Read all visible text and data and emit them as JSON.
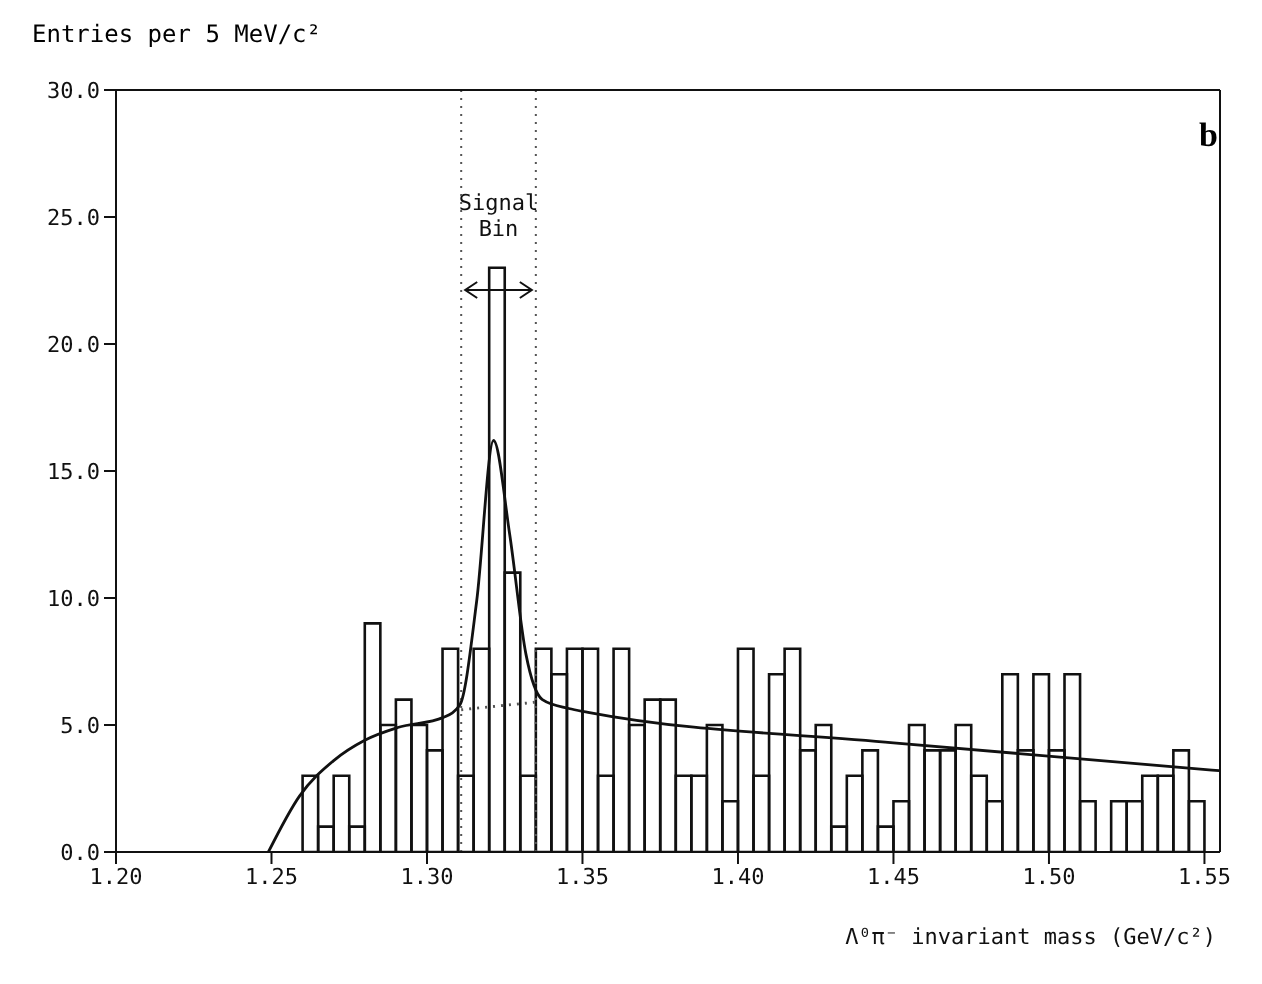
{
  "chart_data": {
    "type": "histogram",
    "xlabel": "Λ⁰π⁻ invariant mass (GeV/c²)",
    "ylabel": "Entries per 5 MeV/c²",
    "color": "#111111",
    "bins": [
      1.26,
      1.265,
      1.27,
      1.275,
      1.28,
      1.285,
      1.29,
      1.295,
      1.3,
      1.305,
      1.31,
      1.315,
      1.32,
      1.325,
      1.33,
      1.335,
      1.34,
      1.345,
      1.35,
      1.355,
      1.36,
      1.365,
      1.37,
      1.375,
      1.38,
      1.385,
      1.39,
      1.395,
      1.4,
      1.405,
      1.41,
      1.415,
      1.42,
      1.425,
      1.43,
      1.435,
      1.44,
      1.445,
      1.45,
      1.455,
      1.46,
      1.465,
      1.47,
      1.475,
      1.48,
      1.485,
      1.49,
      1.495,
      1.5,
      1.505,
      1.51,
      1.515,
      1.52,
      1.525,
      1.53,
      1.535,
      1.54,
      1.545,
      1.55
    ],
    "values": [
      3,
      1,
      3,
      1,
      9,
      5,
      6,
      5,
      4,
      8,
      3,
      8,
      23,
      11,
      3,
      8,
      7,
      8,
      8,
      3,
      8,
      5,
      6,
      6,
      3,
      3,
      5,
      2,
      8,
      3,
      7,
      8,
      4,
      5,
      1,
      3,
      4,
      1,
      2,
      5,
      4,
      4,
      5,
      3,
      2,
      7,
      4,
      7,
      4,
      7,
      2,
      0,
      2,
      2,
      3,
      3,
      4,
      2
    ],
    "series": [
      {
        "type": "line",
        "color": "#111111",
        "line_style": "solid",
        "x": [
          1.249,
          1.259,
          1.27,
          1.28,
          1.2906,
          1.3053,
          1.3106,
          1.316,
          1.3214,
          1.3266,
          1.3318,
          1.3371,
          1.3456,
          1.3518,
          1.45,
          1.5547
        ],
        "values": [
          0,
          2.2,
          3.6,
          4.4,
          4.9,
          5.3,
          5.8,
          9.9,
          16.2,
          12.5,
          7.8,
          6.0,
          5.65,
          5.5,
          4.3,
          3.2
        ]
      },
      {
        "type": "line",
        "color": "#555555",
        "line_style": "dotted",
        "x": [
          1.311,
          1.335
        ],
        "values": [
          5.6,
          5.9
        ]
      }
    ],
    "ref_lines": [
      {
        "axis": "x",
        "value": 1.311,
        "line_style": "dotted",
        "color": "#555555"
      },
      {
        "axis": "x",
        "value": 1.335,
        "line_style": "dotted",
        "color": "#555555"
      }
    ],
    "annotations": [
      "Signal Bin",
      "b"
    ],
    "xlim": [
      1.2,
      1.555
    ],
    "ylim": [
      0,
      30
    ],
    "xticks": [
      {
        "value": 1.2,
        "label": "1.20"
      },
      {
        "value": 1.25,
        "label": "1.25"
      },
      {
        "value": 1.3,
        "label": "1.30"
      },
      {
        "value": 1.35,
        "label": "1.35"
      },
      {
        "value": 1.4,
        "label": "1.40"
      },
      {
        "value": 1.45,
        "label": "1.45"
      },
      {
        "value": 1.5,
        "label": "1.50"
      },
      {
        "value": 1.55,
        "label": "1.55"
      }
    ],
    "yticks": [
      {
        "value": 0,
        "label": "0.0"
      },
      {
        "value": 5,
        "label": "5.0"
      },
      {
        "value": 10,
        "label": "10.0"
      },
      {
        "value": 15,
        "label": "15.0"
      },
      {
        "value": 20,
        "label": "20.0"
      },
      {
        "value": 25,
        "label": "25.0"
      },
      {
        "value": 30,
        "label": "30.0"
      }
    ]
  }
}
